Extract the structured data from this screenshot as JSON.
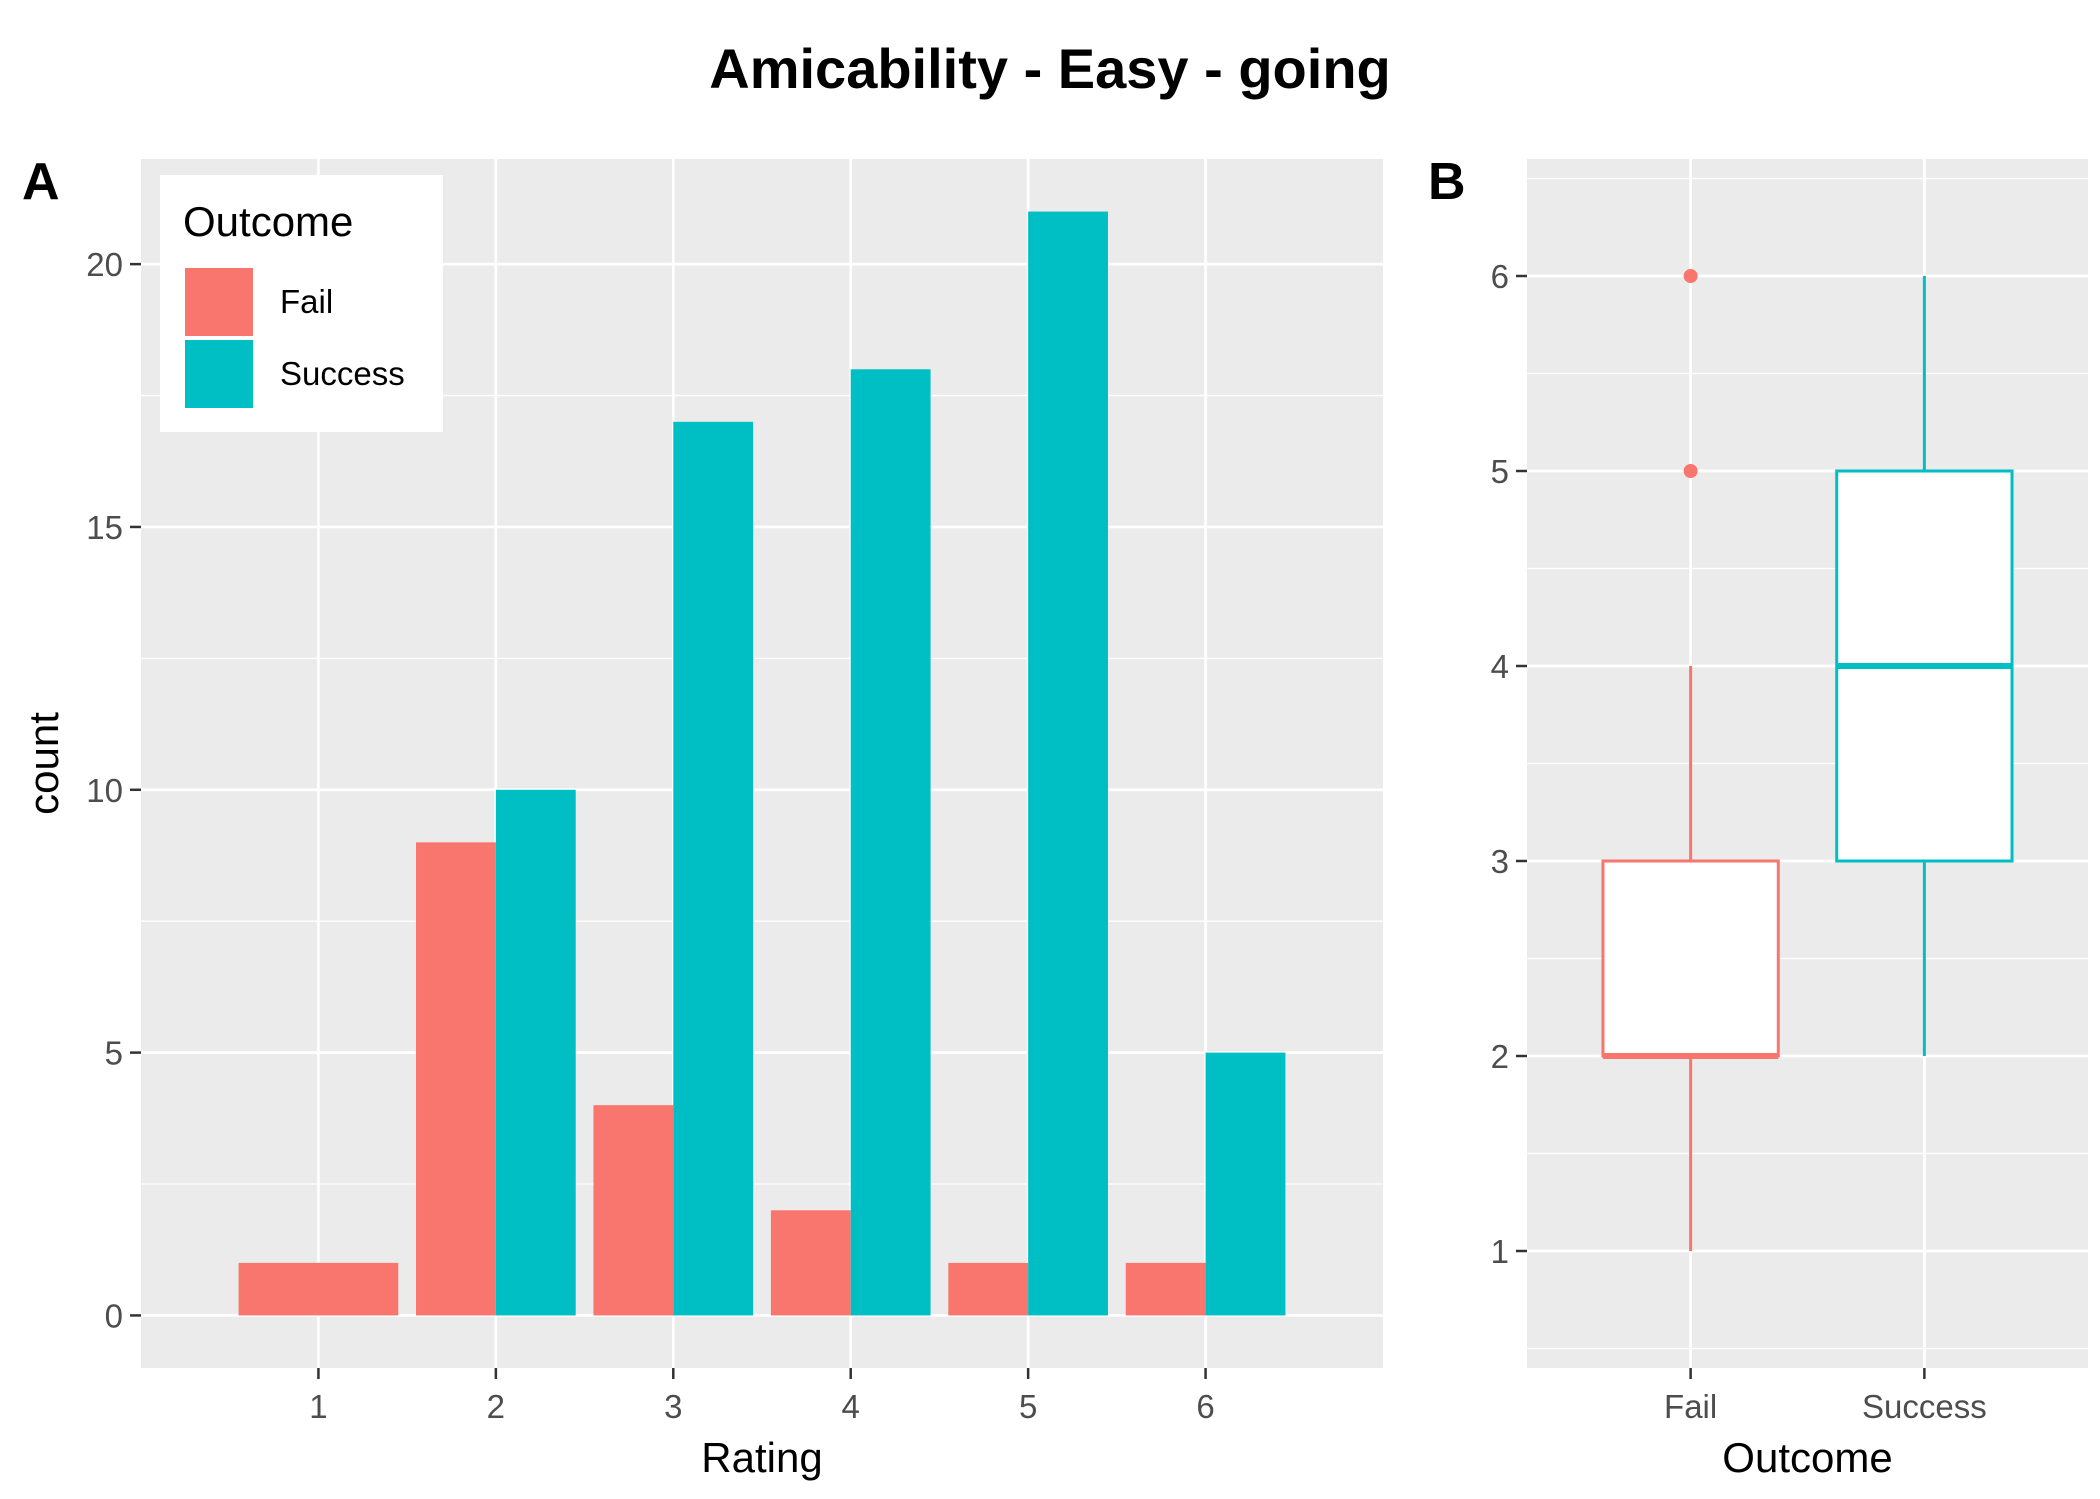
{
  "title": "Amicability - Easy - going",
  "colors": {
    "fail": "#F8766D",
    "success": "#00BFC4",
    "panel_bg": "#EBEBEB",
    "grid": "#FFFFFF"
  },
  "chart_data": [
    {
      "panel_label": "A",
      "type": "bar",
      "xlabel": "Rating",
      "ylabel": "count",
      "categories": [
        "1",
        "2",
        "3",
        "4",
        "5",
        "6"
      ],
      "series": [
        {
          "name": "Fail",
          "color": "#F8766D",
          "values": [
            1,
            9,
            4,
            2,
            1,
            1
          ]
        },
        {
          "name": "Success",
          "color": "#00BFC4",
          "values": [
            0,
            10,
            17,
            18,
            21,
            5
          ]
        }
      ],
      "ylim": [
        -1,
        22
      ],
      "yticks": [
        0,
        5,
        10,
        15,
        20
      ],
      "legend": {
        "title": "Outcome",
        "position": "top-left",
        "items": [
          "Fail",
          "Success"
        ]
      },
      "grid": true
    },
    {
      "panel_label": "B",
      "type": "box",
      "xlabel": "Outcome",
      "ylabel": "Rating",
      "categories": [
        "Fail",
        "Success"
      ],
      "boxes": [
        {
          "name": "Fail",
          "color": "#F8766D",
          "min": 1,
          "q1": 2,
          "median": 2,
          "q3": 3,
          "max": 4,
          "outliers": [
            5,
            6
          ]
        },
        {
          "name": "Success",
          "color": "#00BFC4",
          "min": 2,
          "q1": 3,
          "median": 4,
          "q3": 5,
          "max": 6,
          "outliers": []
        }
      ],
      "ylim": [
        0.4,
        6.6
      ],
      "yticks": [
        1,
        2,
        3,
        4,
        5,
        6
      ],
      "grid": true
    }
  ]
}
